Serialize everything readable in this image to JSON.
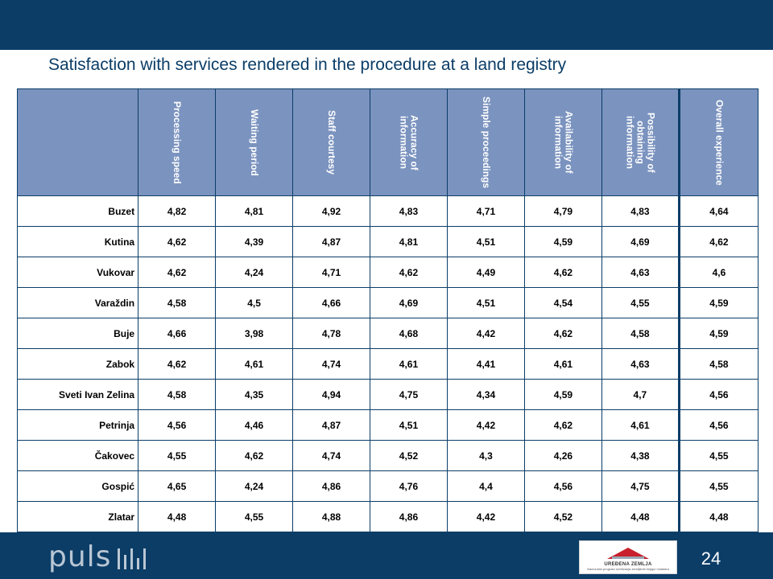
{
  "title": "Satisfaction with services rendered in the procedure at a land registry",
  "columns": [
    "Processing speed",
    "Waiting period",
    "Staff courtesy",
    "Accuracy of information",
    "Simple proceedings",
    "Availability of information",
    "Possibility of obtaining information",
    "Overall experience"
  ],
  "rows": [
    {
      "city": "Buzet",
      "values": [
        "4,82",
        "4,81",
        "4,92",
        "4,83",
        "4,71",
        "4,79",
        "4,83",
        "4,64"
      ]
    },
    {
      "city": "Kutina",
      "values": [
        "4,62",
        "4,39",
        "4,87",
        "4,81",
        "4,51",
        "4,59",
        "4,69",
        "4,62"
      ]
    },
    {
      "city": "Vukovar",
      "values": [
        "4,62",
        "4,24",
        "4,71",
        "4,62",
        "4,49",
        "4,62",
        "4,63",
        "4,6"
      ]
    },
    {
      "city": "Varaždin",
      "values": [
        "4,58",
        "4,5",
        "4,66",
        "4,69",
        "4,51",
        "4,54",
        "4,55",
        "4,59"
      ]
    },
    {
      "city": "Buje",
      "values": [
        "4,66",
        "3,98",
        "4,78",
        "4,68",
        "4,42",
        "4,62",
        "4,58",
        "4,59"
      ]
    },
    {
      "city": "Zabok",
      "values": [
        "4,62",
        "4,61",
        "4,74",
        "4,61",
        "4,41",
        "4,61",
        "4,63",
        "4,58"
      ]
    },
    {
      "city": "Sveti Ivan Zelina",
      "values": [
        "4,58",
        "4,35",
        "4,94",
        "4,75",
        "4,34",
        "4,59",
        "4,7",
        "4,56"
      ]
    },
    {
      "city": "Petrinja",
      "values": [
        "4,56",
        "4,46",
        "4,87",
        "4,51",
        "4,42",
        "4,62",
        "4,61",
        "4,56"
      ]
    },
    {
      "city": "Čakovec",
      "values": [
        "4,55",
        "4,62",
        "4,74",
        "4,52",
        "4,3",
        "4,26",
        "4,38",
        "4,55"
      ]
    },
    {
      "city": "Gospić",
      "values": [
        "4,65",
        "4,24",
        "4,86",
        "4,76",
        "4,4",
        "4,56",
        "4,75",
        "4,55"
      ]
    },
    {
      "city": "Zlatar",
      "values": [
        "4,48",
        "4,55",
        "4,88",
        "4,86",
        "4,42",
        "4,52",
        "4,48",
        "4,48"
      ]
    }
  ],
  "footer": {
    "logo_text": "puls",
    "partner_name": "UREĐENA ZEMLJA",
    "partner_subtitle": "Nacionalni program sređivanja zemljišnih knjiga i katastra",
    "page_number": "24"
  },
  "colors": {
    "header_band": "#0b3d67",
    "table_header": "#7b93bf",
    "title_text": "#0b3d67"
  }
}
